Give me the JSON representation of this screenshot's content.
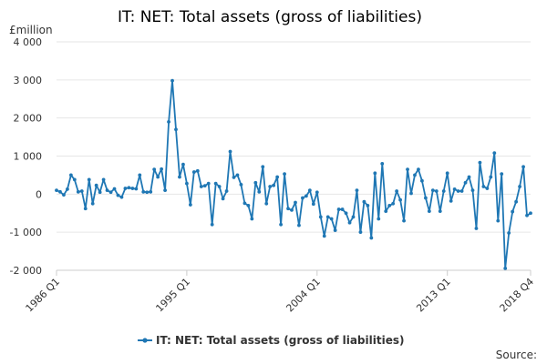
{
  "chart_data": {
    "type": "line",
    "title": "IT: NET: Total assets (gross of liabilities)",
    "ylabel": "£million",
    "xlabel": "",
    "ylim": [
      -2000,
      4000
    ],
    "yticks": [
      4000,
      3000,
      2000,
      1000,
      0,
      -1000,
      -2000
    ],
    "ytick_labels": [
      "4 000",
      "3 000",
      "2 000",
      "1 000",
      "0",
      "-1 000",
      "-2 000"
    ],
    "xtick_labels": [
      "1986 Q1",
      "1995 Q1",
      "2004 Q1",
      "2013 Q1",
      "2018 Q4"
    ],
    "xtick_indices": [
      0,
      36,
      72,
      108,
      131
    ],
    "grid": true,
    "legend": "bottom",
    "source_label": "Source:",
    "series": [
      {
        "name": "IT: NET: Total assets (gross of liabilities)",
        "color": "#1f77b4",
        "values": [
          100,
          60,
          -20,
          130,
          500,
          380,
          60,
          80,
          -380,
          380,
          -250,
          230,
          50,
          380,
          100,
          50,
          140,
          -30,
          -80,
          150,
          170,
          150,
          140,
          500,
          60,
          50,
          60,
          650,
          450,
          660,
          100,
          1900,
          2980,
          1700,
          450,
          780,
          280,
          -280,
          580,
          610,
          200,
          220,
          280,
          -800,
          280,
          200,
          -120,
          80,
          1120,
          440,
          500,
          250,
          -240,
          -300,
          -650,
          300,
          60,
          720,
          -250,
          200,
          230,
          450,
          -800,
          530,
          -380,
          -420,
          -220,
          -820,
          -100,
          -50,
          100,
          -260,
          50,
          -600,
          -1100,
          -600,
          -650,
          -950,
          -400,
          -400,
          -500,
          -750,
          -600,
          100,
          -1000,
          -200,
          -300,
          -1150,
          550,
          -650,
          800,
          -450,
          -300,
          -250,
          80,
          -150,
          -700,
          650,
          20,
          500,
          650,
          350,
          -100,
          -450,
          100,
          80,
          -450,
          80,
          550,
          -180,
          130,
          80,
          80,
          300,
          450,
          100,
          -900,
          830,
          200,
          150,
          450,
          1080,
          -700,
          530,
          -1950,
          -1020,
          -460,
          -200,
          200,
          720,
          -560,
          -500
        ]
      }
    ]
  }
}
